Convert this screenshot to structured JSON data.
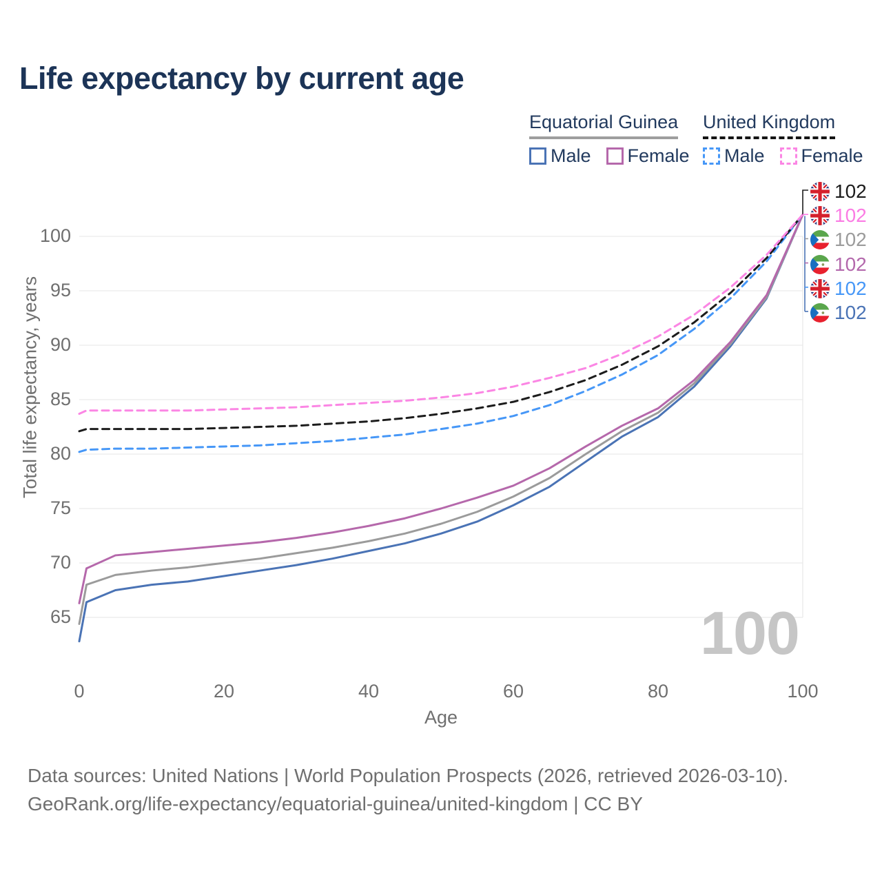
{
  "title": "Life expectancy by current age",
  "legend": {
    "groups": [
      {
        "label": "Equatorial Guinea",
        "style": "solid",
        "items": [
          {
            "label": "Male",
            "color": "#4a73b5"
          },
          {
            "label": "Female",
            "color": "#b568ab"
          }
        ]
      },
      {
        "label": "United Kingdom",
        "style": "dashed",
        "items": [
          {
            "label": "Male",
            "color": "#4697f7"
          },
          {
            "label": "Female",
            "color": "#fb86e4"
          }
        ]
      }
    ]
  },
  "watermark": "100",
  "footer": {
    "line1": "Data sources: United Nations | World Population Prospects (2026, retrieved 2026-03-10).",
    "line2": "GeoRank.org/life-expectancy/equatorial-guinea/united-kingdom | CC BY"
  },
  "chart_data": {
    "type": "line",
    "title": "Life expectancy by current age",
    "xlabel": "Age",
    "ylabel": "Total life expectancy, years",
    "xlim": [
      0,
      100
    ],
    "ylim": [
      62,
      103
    ],
    "xticks": [
      0,
      20,
      40,
      60,
      80,
      100
    ],
    "yticks": [
      65,
      70,
      75,
      80,
      85,
      90,
      95,
      100
    ],
    "grid": "horizontal",
    "legend_position": "top-right",
    "x": [
      0,
      1,
      5,
      10,
      15,
      20,
      25,
      30,
      35,
      40,
      45,
      50,
      55,
      60,
      65,
      70,
      75,
      80,
      85,
      90,
      95,
      100
    ],
    "series": [
      {
        "id": "eg-male",
        "name": "Equatorial Guinea Male",
        "color": "#4a73b5",
        "dash": false,
        "values": [
          62.8,
          66.4,
          67.5,
          68.0,
          68.3,
          68.8,
          69.3,
          69.8,
          70.4,
          71.1,
          71.8,
          72.7,
          73.8,
          75.3,
          77.0,
          79.3,
          81.6,
          83.4,
          86.2,
          89.9,
          94.3,
          102
        ]
      },
      {
        "id": "eg-total",
        "name": "Equatorial Guinea Total",
        "color": "#9b9b9b",
        "dash": false,
        "values": [
          64.4,
          68.0,
          68.9,
          69.3,
          69.6,
          70.0,
          70.4,
          70.9,
          71.4,
          72.0,
          72.7,
          73.6,
          74.7,
          76.1,
          77.8,
          80.0,
          82.1,
          83.8,
          86.5,
          90.1,
          94.4,
          102
        ]
      },
      {
        "id": "eg-female",
        "name": "Equatorial Guinea Female",
        "color": "#b568ab",
        "dash": false,
        "values": [
          66.3,
          69.5,
          70.7,
          71.0,
          71.3,
          71.6,
          71.9,
          72.3,
          72.8,
          73.4,
          74.1,
          75.0,
          76.0,
          77.1,
          78.7,
          80.7,
          82.6,
          84.2,
          86.8,
          90.3,
          94.6,
          102
        ]
      },
      {
        "id": "uk-male",
        "name": "United Kingdom Male",
        "color": "#4697f7",
        "dash": true,
        "values": [
          80.2,
          80.4,
          80.5,
          80.5,
          80.6,
          80.7,
          80.8,
          81.0,
          81.2,
          81.5,
          81.8,
          82.3,
          82.8,
          83.5,
          84.5,
          85.8,
          87.3,
          89.1,
          91.5,
          94.3,
          97.7,
          102
        ]
      },
      {
        "id": "uk-total",
        "name": "United Kingdom Total",
        "color": "#1c1c1c",
        "dash": true,
        "values": [
          82.1,
          82.3,
          82.3,
          82.3,
          82.3,
          82.4,
          82.5,
          82.6,
          82.8,
          83.0,
          83.3,
          83.7,
          84.2,
          84.8,
          85.7,
          86.8,
          88.2,
          89.9,
          92.1,
          94.8,
          98.0,
          102
        ]
      },
      {
        "id": "uk-female",
        "name": "United Kingdom Female",
        "color": "#fb86e4",
        "dash": true,
        "values": [
          83.7,
          84.0,
          84.0,
          84.0,
          84.0,
          84.1,
          84.2,
          84.3,
          84.5,
          84.7,
          84.9,
          85.2,
          85.6,
          86.2,
          87.0,
          87.9,
          89.2,
          90.8,
          92.8,
          95.3,
          98.3,
          102
        ]
      }
    ],
    "endpoints": [
      {
        "flag": "uk",
        "value": "102",
        "color": "#1c1c1c"
      },
      {
        "flag": "uk",
        "value": "102",
        "color": "#fb7ce4"
      },
      {
        "flag": "gq",
        "value": "102",
        "color": "#9b9b9b"
      },
      {
        "flag": "gq",
        "value": "102",
        "color": "#b368ac"
      },
      {
        "flag": "uk",
        "value": "102",
        "color": "#4697f7"
      },
      {
        "flag": "gq",
        "value": "102",
        "color": "#4a73b5"
      }
    ]
  }
}
